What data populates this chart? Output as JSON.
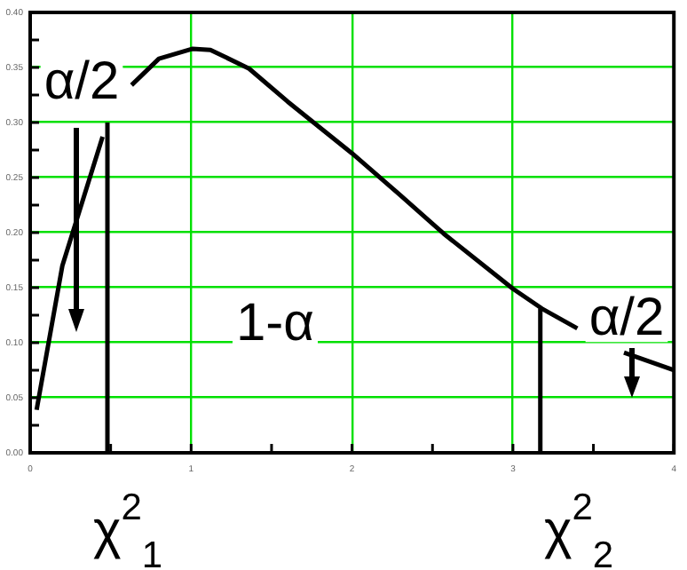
{
  "chart_data": {
    "type": "line",
    "xlim": [
      0,
      4
    ],
    "ylim": [
      0,
      0.4
    ],
    "xticks": [
      0,
      {
        "value": 0.5,
        "label": null
      },
      1,
      {
        "value": 1.5,
        "label": null
      },
      2,
      {
        "value": 2.5,
        "label": null
      },
      3,
      {
        "value": 3.5,
        "label": null
      },
      4
    ],
    "yticks": [
      {
        "value": 0,
        "label": "0.00"
      },
      {
        "value": 0.025,
        "label": null
      },
      {
        "value": 0.05,
        "label": "0.05"
      },
      {
        "value": 0.075,
        "label": null
      },
      {
        "value": 0.1,
        "label": "0.10"
      },
      {
        "value": 0.125,
        "label": null
      },
      {
        "value": 0.15,
        "label": "0.15"
      },
      {
        "value": 0.175,
        "label": null
      },
      {
        "value": 0.2,
        "label": "0.20"
      },
      {
        "value": 0.225,
        "label": null
      },
      {
        "value": 0.25,
        "label": "0.25"
      },
      {
        "value": 0.275,
        "label": null
      },
      {
        "value": 0.3,
        "label": "0.30"
      },
      {
        "value": 0.325,
        "label": null
      },
      {
        "value": 0.35,
        "label": "0.35"
      },
      {
        "value": 0.375,
        "label": null
      },
      {
        "value": 0.4,
        "label": "0.40"
      }
    ],
    "grid": true,
    "legend": false,
    "marker": "none",
    "line_style": "solid",
    "series": [
      {
        "color": "#000000",
        "x": [
          0.04,
          0.2,
          0.45,
          0.54,
          0.63,
          0.8,
          1.01,
          1.12,
          1.36,
          1.6,
          2.0,
          2.3,
          2.57,
          3.0,
          3.18,
          3.4,
          3.55,
          3.69,
          4.0
        ],
        "values": [
          0.039,
          0.17,
          0.287,
          null,
          0.334,
          0.358,
          0.367,
          0.366,
          0.349,
          0.319,
          0.272,
          0.234,
          0.199,
          0.149,
          0.131,
          0.113,
          null,
          0.091,
          0.075
        ]
      },
      {
        "color": "#000000",
        "x": [
          0.48,
          0.48
        ],
        "values": [
          0,
          0.3
        ]
      },
      {
        "color": "#000000",
        "x": [
          3.17,
          3.17
        ],
        "values": [
          0,
          0.131
        ]
      }
    ],
    "annotations": [
      "α/2",
      "1-α",
      "α/2",
      "χ$^{2}$$_{1}$",
      "χ$^{2}$$_{2}$"
    ]
  }
}
